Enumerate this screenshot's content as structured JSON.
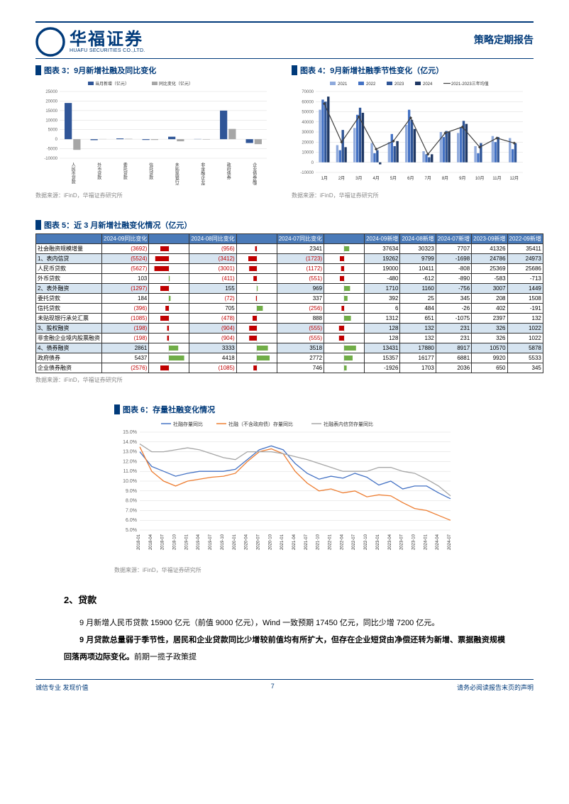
{
  "header": {
    "logo_cn": "华福证券",
    "logo_en": "HUAFU SECURITIES CO.,LTD.",
    "report_type": "策略定期报告"
  },
  "chart3": {
    "title": "图表 3：9月新增社融及同比变化",
    "type": "bar",
    "source": "数据来源：iFinD，华福证券研究所",
    "legend": [
      "当月新增（亿元）",
      "同比变化（亿元）"
    ],
    "legend_colors": [
      "#2f5597",
      "#a6a6a6"
    ],
    "categories": [
      "人民币贷款",
      "外币贷款",
      "委托贷款",
      "信托贷款",
      "未贴现银行承兑汇票",
      "非金融企业境内股票融资",
      "政府债券",
      "企业债券融资"
    ],
    "series_new": [
      19000,
      -500,
      400,
      -400,
      1300,
      100,
      15000,
      -2000
    ],
    "series_yoy": [
      -5600,
      100,
      200,
      -400,
      -1100,
      -200,
      5400,
      -2600
    ],
    "ylim": [
      -10000,
      25000
    ],
    "ytick_step": 5000,
    "grid_color": "#d9d9d9",
    "background_color": "#ffffff",
    "label_fontsize": 6
  },
  "chart4": {
    "title": "图表 4：9月新增社融季节性变化（亿元）",
    "type": "bar-line",
    "source": "数据来源：iFinD，华福证券研究所",
    "legend": [
      "2021",
      "2022",
      "2023",
      "2024",
      "2021-2023三年均值"
    ],
    "legend_colors": [
      "#8faadc",
      "#4472c4",
      "#2f5597",
      "#1f3864",
      "#404040"
    ],
    "categories": [
      "1月",
      "2月",
      "3月",
      "4月",
      "5月",
      "6月",
      "7月",
      "8月",
      "9月",
      "10月",
      "11月",
      "12月"
    ],
    "series": {
      "2021": [
        52000,
        17000,
        34000,
        19000,
        20000,
        37000,
        11000,
        30000,
        29000,
        16000,
        26000,
        24000
      ],
      "2022": [
        62000,
        12000,
        47000,
        9000,
        28000,
        52000,
        8000,
        25000,
        35000,
        9000,
        20000,
        13000
      ],
      "2023": [
        60000,
        32000,
        54000,
        12000,
        16000,
        42000,
        5000,
        31000,
        41000,
        19000,
        25000,
        19000
      ],
      "2024": [
        65000,
        15000,
        49000,
        -2000,
        21000,
        33000,
        8000,
        30000,
        38000,
        null,
        null,
        null
      ],
      "avg": [
        58000,
        20000,
        45000,
        13000,
        21000,
        44000,
        8000,
        29000,
        35000,
        15000,
        24000,
        19000
      ]
    },
    "ylim": [
      -10000,
      70000
    ],
    "ytick_step": 10000,
    "grid_color": "#d9d9d9",
    "background_color": "#ffffff",
    "label_fontsize": 6
  },
  "chart5": {
    "title": "图表 5：近 3 月新增社融变化情况（亿元）",
    "source": "数据来源：iFinD，华福证券研究所",
    "columns": [
      "",
      "2024-09同比变化",
      "",
      "2024-08同比变化",
      "",
      "2024-07同比变化",
      "",
      "2024-09新增",
      "2024-08新增",
      "2024-07新增",
      "2023-09新增",
      "2022-09新增"
    ],
    "rows": [
      {
        "lbl": "社会融资规模增量",
        "c": [
          "(3692)",
          "(956)",
          "2341",
          "37634",
          "30323",
          "7707",
          "41326",
          "35411"
        ],
        "spark": [
          -0.5,
          -0.1,
          0.3
        ],
        "shade": false
      },
      {
        "lbl": "1、表内信贷",
        "c": [
          "(5524)",
          "(3412)",
          "(1723)",
          "19262",
          "9799",
          "-1698",
          "24786",
          "24973"
        ],
        "spark": [
          -0.8,
          -0.5,
          -0.25
        ],
        "shade": true
      },
      {
        "lbl": "  人民币贷款",
        "c": [
          "(5627)",
          "(3001)",
          "(1172)",
          "19000",
          "10411",
          "-808",
          "25369",
          "25686"
        ],
        "spark": [
          -0.85,
          -0.45,
          -0.18
        ],
        "shade": false
      },
      {
        "lbl": "  外币贷款",
        "c": [
          "103",
          "(411)",
          "(551)",
          "-480",
          "-612",
          "-890",
          "-583",
          "-713"
        ],
        "spark": [
          0.05,
          -0.2,
          -0.25
        ],
        "shade": false
      },
      {
        "lbl": "2、表外融资",
        "c": [
          "(1297)",
          "155",
          "969",
          "1710",
          "1160",
          "-756",
          "3007",
          "1449"
        ],
        "spark": [
          -0.5,
          0.05,
          0.35
        ],
        "shade": true
      },
      {
        "lbl": "  委托贷款",
        "c": [
          "184",
          "(72)",
          "337",
          "392",
          "25",
          "345",
          "208",
          "1508"
        ],
        "spark": [
          0.1,
          -0.05,
          0.2
        ],
        "shade": false
      },
      {
        "lbl": "  信托贷款",
        "c": [
          "(396)",
          "705",
          "(256)",
          "6",
          "484",
          "-26",
          "402",
          "-191"
        ],
        "spark": [
          -0.2,
          0.35,
          -0.15
        ],
        "shade": false
      },
      {
        "lbl": "  未贴现银行承兑汇票",
        "c": [
          "(1085)",
          "(478)",
          "888",
          "1312",
          "651",
          "-1075",
          "2397",
          "132"
        ],
        "spark": [
          -0.5,
          -0.25,
          0.4
        ],
        "shade": false
      },
      {
        "lbl": "3、股权融资",
        "c": [
          "(198)",
          "(904)",
          "(555)",
          "128",
          "132",
          "231",
          "326",
          "1022"
        ],
        "spark": [
          -0.1,
          -0.45,
          -0.3
        ],
        "shade": true
      },
      {
        "lbl": "  非金融企业境内股票融资",
        "c": [
          "(198)",
          "(904)",
          "(555)",
          "128",
          "132",
          "231",
          "326",
          "1022"
        ],
        "spark": [
          -0.1,
          -0.45,
          -0.3
        ],
        "shade": false
      },
      {
        "lbl": "4、债券融资",
        "c": [
          "2861",
          "3333",
          "3518",
          "13431",
          "17880",
          "8917",
          "10570",
          "5878"
        ],
        "spark": [
          0.55,
          0.65,
          0.7
        ],
        "shade": true
      },
      {
        "lbl": "  政府债券",
        "c": [
          "5437",
          "4418",
          "2772",
          "15357",
          "16177",
          "6881",
          "9920",
          "5533"
        ],
        "spark": [
          0.9,
          0.75,
          0.5
        ],
        "shade": false
      },
      {
        "lbl": "  企业债券融资",
        "c": [
          "(2576)",
          "(1085)",
          "746",
          "-1926",
          "1703",
          "2036",
          "650",
          "345"
        ],
        "spark": [
          -0.5,
          -0.2,
          0.15
        ],
        "shade": false
      }
    ],
    "neg_color": "#c00000",
    "header_bg": "#4a7ab8",
    "shade_bg": "#d6e4f0",
    "spark_neg": "#c00000",
    "spark_pos": "#70ad47"
  },
  "chart6": {
    "title": "图表 6：存量社融变化情况",
    "type": "line",
    "source": "数据来源：iFinD，华福证券研究所",
    "legend": [
      "社融存量同比",
      "社融（不含政府债）存量同比",
      "社融表内信贷存量同比"
    ],
    "legend_colors": [
      "#4472c4",
      "#ed7d31",
      "#a6a6a6"
    ],
    "categories": [
      "2018-01",
      "2018-04",
      "2018-07",
      "2018-10",
      "2019-01",
      "2019-04",
      "2019-07",
      "2019-10",
      "2020-01",
      "2020-04",
      "2020-07",
      "2020-10",
      "2021-01",
      "2021-04",
      "2021-07",
      "2021-10",
      "2022-01",
      "2022-04",
      "2022-07",
      "2022-10",
      "2023-01",
      "2023-04",
      "2023-07",
      "2023-10",
      "2024-01",
      "2024-04",
      "2024-07"
    ],
    "series": {
      "blue": [
        13.0,
        11.5,
        11.0,
        10.5,
        10.8,
        11.0,
        11.0,
        11.0,
        11.2,
        12.2,
        13.2,
        13.6,
        13.2,
        11.8,
        10.8,
        10.2,
        10.5,
        10.3,
        10.8,
        10.4,
        9.6,
        10.0,
        9.2,
        9.5,
        9.5,
        8.8,
        8.2
      ],
      "orange": [
        13.5,
        11.0,
        10.0,
        9.5,
        10.0,
        10.2,
        10.4,
        10.5,
        10.8,
        12.0,
        13.0,
        13.3,
        12.8,
        11.0,
        9.8,
        9.0,
        9.2,
        8.8,
        9.0,
        8.4,
        8.6,
        8.5,
        7.8,
        7.2,
        7.0,
        6.5,
        6.0
      ],
      "gray": [
        13.8,
        13.0,
        13.0,
        13.2,
        13.4,
        13.2,
        12.8,
        12.4,
        12.2,
        13.0,
        13.0,
        13.0,
        12.8,
        12.5,
        12.2,
        11.8,
        11.4,
        11.0,
        11.0,
        11.0,
        11.4,
        11.4,
        11.0,
        10.8,
        10.2,
        9.5,
        8.5
      ]
    },
    "ylim": [
      5.0,
      15.0
    ],
    "ytick_step": 1.0,
    "y_suffix": "%",
    "grid_color": "#d9d9d9",
    "background_color": "#ffffff",
    "label_fontsize": 6
  },
  "body": {
    "h2": "2、贷款",
    "p1a": "9 月新增人民币贷款 15900 亿元（前值 9000 亿元），Wind 一致预期 17450 亿元，同比少增 7200 亿元。",
    "p2_bold": "9 月贷款总量弱于季节性，居民和企业贷款同比少增较前值均有所扩大，但存在企业短贷由净偿还转为新增、票据融资规模回落两项边际变化。",
    "p2_tail": "前期一揽子政策提"
  },
  "footer": {
    "left": "诚信专业   发现价值",
    "page": "7",
    "right": "请务必阅读报告末页的声明"
  }
}
